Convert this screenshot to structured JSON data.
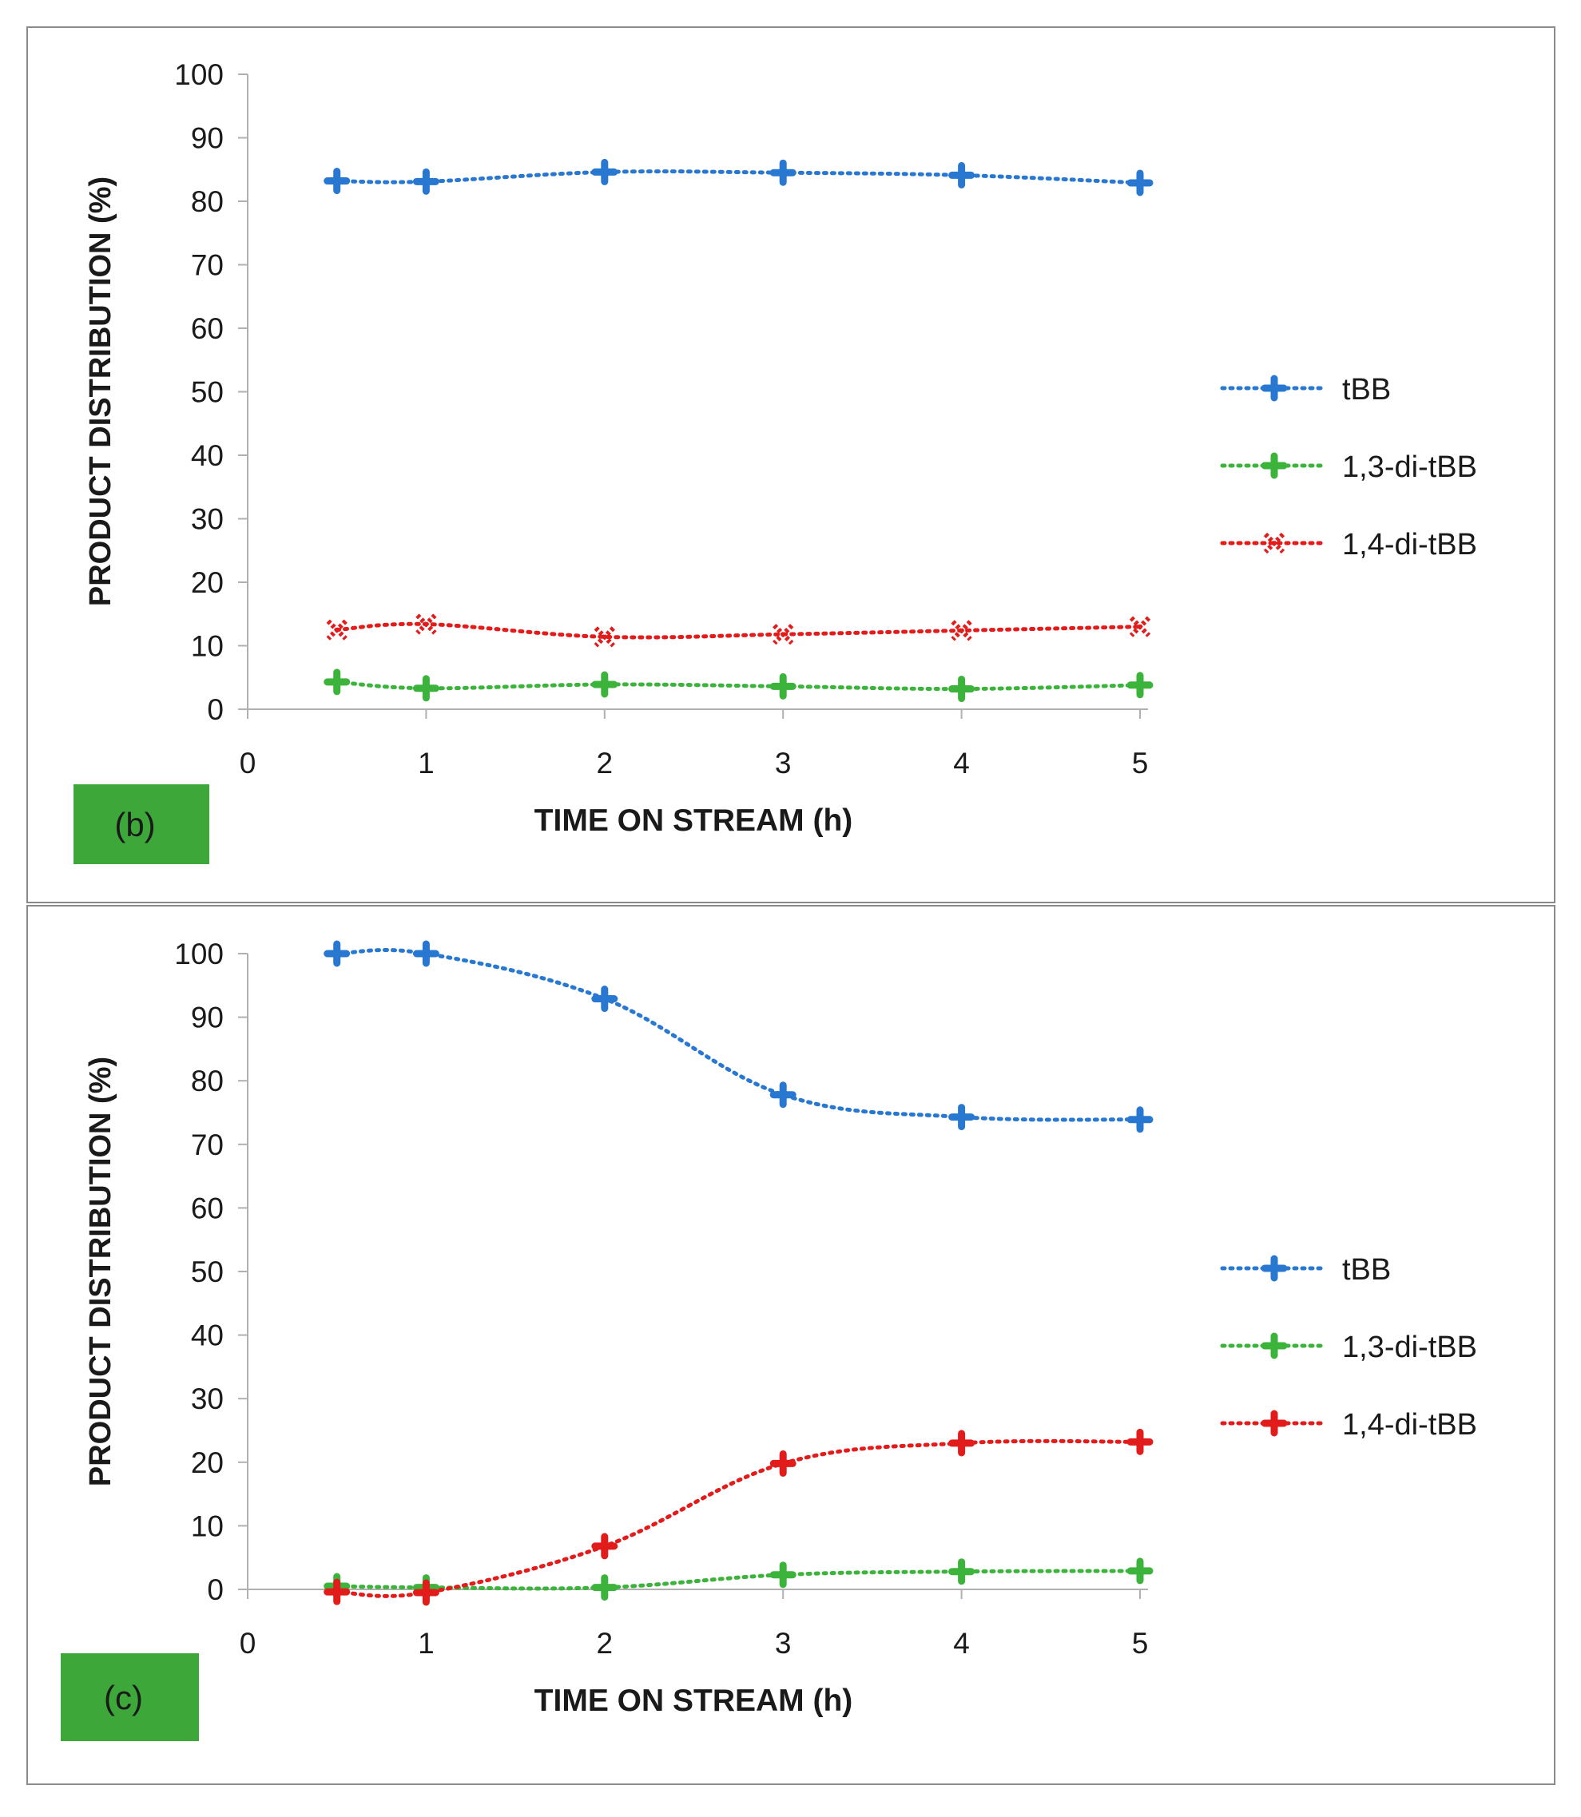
{
  "colors": {
    "tBB": "#2878d2",
    "di13": "#3cb43c",
    "di14": "#e21b1b",
    "badge": "#3da839",
    "frame": "#8a8a8a",
    "axis": "#b0b0b0",
    "text": "#1a1a1a"
  },
  "chart_data": [
    {
      "type": "line",
      "panel_label": "(b)",
      "xlabel": "TIME ON STREAM (h)",
      "ylabel": "PRODUCT DISTRIBUTION (%)",
      "xlim": [
        0,
        5
      ],
      "ylim": [
        0,
        100
      ],
      "xticks": [
        "0",
        "1",
        "2",
        "3",
        "4",
        "5"
      ],
      "yticks": [
        "0",
        "10",
        "20",
        "30",
        "40",
        "50",
        "60",
        "70",
        "80",
        "90",
        "100"
      ],
      "x": [
        0.5,
        1,
        2,
        3,
        4,
        5
      ],
      "legend_position": "right",
      "series": [
        {
          "name": "tBB",
          "color_key": "tBB",
          "values": [
            83.2,
            83.1,
            84.6,
            84.5,
            84.1,
            82.9
          ]
        },
        {
          "name": "1,3-di-tBB",
          "color_key": "di13",
          "values": [
            4.3,
            3.3,
            3.9,
            3.6,
            3.2,
            3.8
          ]
        },
        {
          "name": "1,4-di-tBB",
          "color_key": "di14",
          "values": [
            12.5,
            13.4,
            11.4,
            11.8,
            12.4,
            13.0
          ]
        }
      ]
    },
    {
      "type": "line",
      "panel_label": "(c)",
      "xlabel": "TIME ON STREAM (h)",
      "ylabel": "PRODUCT DISTRIBUTION (%)",
      "xlim": [
        0,
        5
      ],
      "ylim": [
        0,
        100
      ],
      "xticks": [
        "0",
        "1",
        "2",
        "3",
        "4",
        "5"
      ],
      "yticks": [
        "0",
        "10",
        "20",
        "30",
        "40",
        "50",
        "60",
        "70",
        "80",
        "90",
        "100"
      ],
      "x": [
        0.5,
        1,
        2,
        3,
        4,
        5
      ],
      "legend_position": "right",
      "series": [
        {
          "name": "tBB",
          "color_key": "tBB",
          "values": [
            100,
            100,
            92.9,
            77.8,
            74.3,
            73.9
          ]
        },
        {
          "name": "1,3-di-tBB",
          "color_key": "di13",
          "values": [
            0.5,
            0.3,
            0.3,
            2.3,
            2.8,
            2.9
          ]
        },
        {
          "name": "1,4-di-tBB",
          "color_key": "di14",
          "values": [
            -0.4,
            -0.5,
            6.8,
            19.8,
            23.0,
            23.2
          ]
        }
      ]
    }
  ]
}
